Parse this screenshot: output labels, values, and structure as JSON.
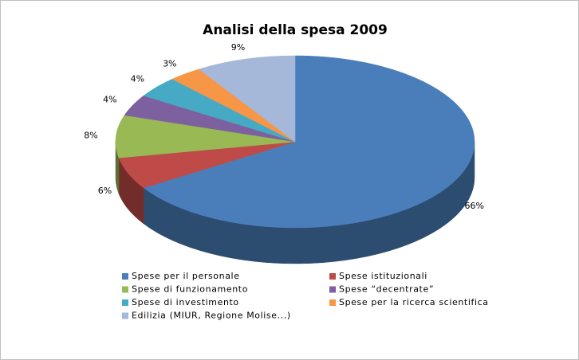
{
  "chart_data": {
    "type": "pie3d",
    "title": "Analisi della spesa 2009",
    "categories": [
      "Spese per il personale",
      "Spese istituzionali",
      "Spese di funzionamento",
      "Spese “decentrate”",
      "Spese di investimento",
      "Spese per la ricerca scientifica",
      "Edilizia (MIUR, Regione Molise...)"
    ],
    "values": [
      66,
      6,
      8,
      4,
      4,
      3,
      9
    ],
    "value_labels": [
      "66%",
      "6%",
      "8%",
      "4%",
      "4%",
      "3%",
      "9%"
    ],
    "colors": [
      "#4a7ebb",
      "#be4b48",
      "#98b954",
      "#7d60a0",
      "#46aac5",
      "#f79646",
      "#a5b8d9"
    ],
    "legend": "bottom"
  }
}
